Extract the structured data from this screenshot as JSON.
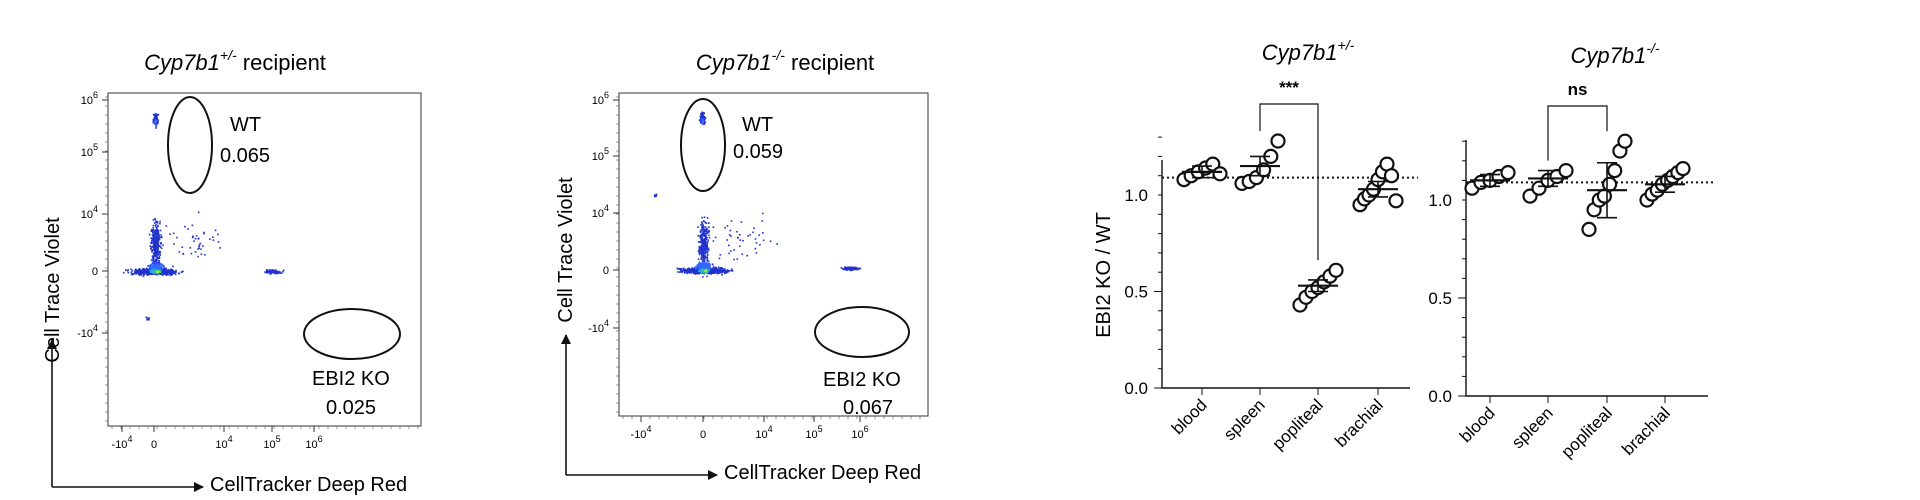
{
  "flow_panels": [
    {
      "title_gene": "Cyp7b1",
      "title_sup": "+/-",
      "title_suffix": "recipient",
      "ylabel": "Cell Trace Violet",
      "xlabel": "CellTracker Deep Red",
      "y_ticks": [
        {
          "base": "10",
          "exp": "6"
        },
        {
          "base": "10",
          "exp": "5"
        },
        {
          "base": "10",
          "exp": "4"
        },
        {
          "base": "0",
          "exp": ""
        },
        {
          "base": "-10",
          "exp": "4"
        }
      ],
      "x_ticks": [
        {
          "base": "-10",
          "exp": "4"
        },
        {
          "base": "0",
          "exp": ""
        },
        {
          "base": "10",
          "exp": "4"
        },
        {
          "base": "10",
          "exp": "5"
        },
        {
          "base": "10",
          "exp": "6"
        }
      ],
      "gates": [
        {
          "name": "WT",
          "value": "0.065"
        },
        {
          "name": "EBI2 KO",
          "value": "0.025"
        }
      ]
    },
    {
      "title_gene": "Cyp7b1",
      "title_sup": "-/-",
      "title_suffix": "recipient",
      "ylabel": "Cell Trace Violet",
      "xlabel": "CellTracker Deep Red",
      "y_ticks": [
        {
          "base": "10",
          "exp": "6"
        },
        {
          "base": "10",
          "exp": "5"
        },
        {
          "base": "10",
          "exp": "4"
        },
        {
          "base": "0",
          "exp": ""
        },
        {
          "base": "-10",
          "exp": "4"
        }
      ],
      "x_ticks": [
        {
          "base": "-10",
          "exp": "4"
        },
        {
          "base": "0",
          "exp": ""
        },
        {
          "base": "10",
          "exp": "4"
        },
        {
          "base": "10",
          "exp": "5"
        },
        {
          "base": "10",
          "exp": "6"
        }
      ],
      "gates": [
        {
          "name": "WT",
          "value": "0.059"
        },
        {
          "name": "EBI2 KO",
          "value": "0.067"
        }
      ]
    }
  ],
  "chart_data": [
    {
      "type": "scatter",
      "title_gene": "Cyp7b1",
      "title_sup": "+/-",
      "ylabel": "EBI2 KO / WT",
      "categories": [
        "blood",
        "spleen",
        "popliteal",
        "brachial"
      ],
      "y_tick_labels": [
        "0.0",
        "0.5",
        "1.0"
      ],
      "ylim": [
        0,
        1.3
      ],
      "reference_line": 1.09,
      "points": [
        [
          1.08,
          1.1,
          1.12,
          1.14,
          1.16,
          1.11
        ],
        [
          1.06,
          1.07,
          1.09,
          1.13,
          1.2,
          1.28
        ],
        [
          0.43,
          0.47,
          0.5,
          0.52,
          0.55,
          0.58,
          0.61
        ],
        [
          0.95,
          0.98,
          1.0,
          1.03,
          1.08,
          1.12,
          1.16,
          1.1,
          0.97
        ]
      ],
      "means": [
        1.12,
        1.15,
        0.53,
        1.03
      ],
      "errors": [
        0.03,
        0.05,
        0.03,
        0.04
      ],
      "comparison": {
        "from": "spleen",
        "to": "popliteal",
        "label": "***"
      }
    },
    {
      "type": "scatter",
      "title_gene": "Cyp7b1",
      "title_sup": "-/-",
      "ylabel": "",
      "categories": [
        "blood",
        "spleen",
        "popliteal",
        "brachial"
      ],
      "y_tick_labels": [
        "0.0",
        "0.5",
        "1.0"
      ],
      "ylim": [
        0,
        1.3
      ],
      "reference_line": 1.09,
      "points": [
        [
          1.06,
          1.09,
          1.1,
          1.12,
          1.14
        ],
        [
          1.02,
          1.06,
          1.1,
          1.12,
          1.15
        ],
        [
          0.85,
          0.95,
          1.0,
          1.02,
          1.08,
          1.15,
          1.25,
          1.3
        ],
        [
          1.0,
          1.03,
          1.05,
          1.08,
          1.1,
          1.12,
          1.14,
          1.16
        ]
      ],
      "means": [
        1.1,
        1.11,
        1.05,
        1.08
      ],
      "errors": [
        0.03,
        0.04,
        0.14,
        0.04
      ],
      "comparison": {
        "from": "spleen",
        "to": "popliteal",
        "label": "ns"
      }
    }
  ]
}
